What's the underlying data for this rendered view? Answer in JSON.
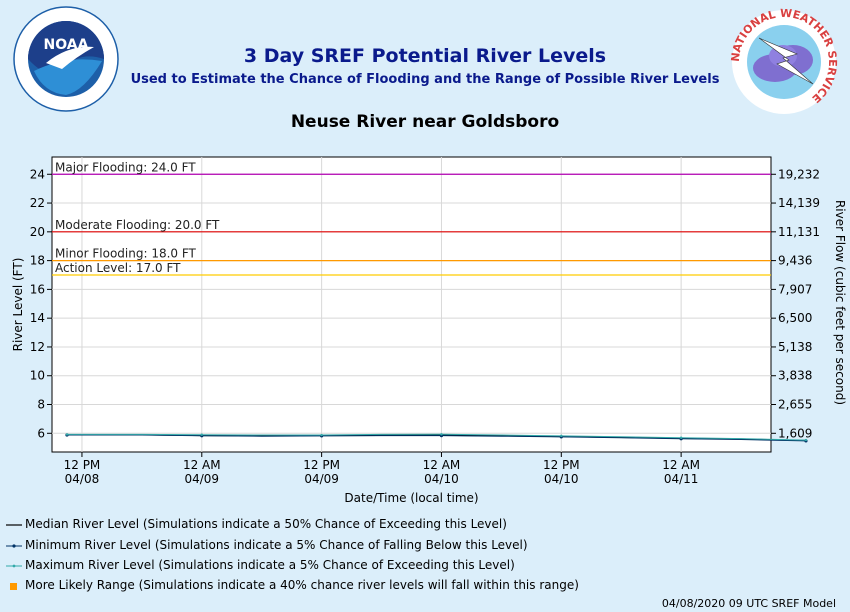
{
  "header": {
    "title": "3 Day SREF Potential River Levels",
    "subtitle": "Used to Estimate the Chance of Flooding and the Range of Possible River Levels",
    "gauge_name": "Neuse River near Goldsboro",
    "noaa_logo_text": "NOAA",
    "noaa_ring_text": "NATIONAL OCEANIC AND ATMOSPHERIC ADMINISTRATION · U.S. DEPARTMENT OF COMMERCE",
    "nws_ring_text": "NATIONAL WEATHER SERVICE"
  },
  "chart_data": {
    "type": "line",
    "xlabel": "Date/Time (local time)",
    "ylabel": "River Level (FT)",
    "y2label": "River Flow (cubic feet per second)",
    "ylim": [
      4.7,
      25.2
    ],
    "yticks": [
      6,
      8,
      10,
      12,
      14,
      16,
      18,
      20,
      22,
      24
    ],
    "y2ticks": [
      "1,609",
      "2,655",
      "3,838",
      "5,138",
      "6,500",
      "7,907",
      "9,436",
      "11,131",
      "14,139",
      "19,232"
    ],
    "xlim_hours": [
      -3,
      69
    ],
    "xticks": [
      {
        "hour": 0,
        "line1": "12 PM",
        "line2": "04/08"
      },
      {
        "hour": 12,
        "line1": "12 AM",
        "line2": "04/09"
      },
      {
        "hour": 24,
        "line1": "12 PM",
        "line2": "04/09"
      },
      {
        "hour": 36,
        "line1": "12 AM",
        "line2": "04/10"
      },
      {
        "hour": 48,
        "line1": "12 PM",
        "line2": "04/10"
      },
      {
        "hour": 60,
        "line1": "12 AM",
        "line2": "04/11"
      },
      {
        "hour": 72,
        "line1": "12 PM",
        "line2": "04/11"
      }
    ],
    "thresholds": [
      {
        "label": "Major Flooding: 24.0 FT",
        "value": 24.0,
        "color": "#b200b2"
      },
      {
        "label": "Moderate Flooding: 20.0 FT",
        "value": 20.0,
        "color": "#e00000"
      },
      {
        "label": "Minor Flooding: 18.0 FT",
        "value": 18.0,
        "color": "#ff9900"
      },
      {
        "label": "Action Level: 17.0 FT",
        "value": 17.0,
        "color": "#ffcc00"
      }
    ],
    "series": [
      {
        "name": "Median River Level (Simulations indicate a 50% Chance of Exceeding this Level)",
        "color": "#000000",
        "x": [
          -1.5,
          6,
          12,
          18,
          24,
          30,
          36,
          42,
          48,
          54,
          60,
          66,
          72.5
        ],
        "values": [
          5.9,
          5.9,
          5.85,
          5.83,
          5.85,
          5.86,
          5.87,
          5.83,
          5.78,
          5.72,
          5.65,
          5.6,
          5.5
        ]
      },
      {
        "name": "Minimum River Level (Simulations indicate a 5% Chance of Falling Below this Level)",
        "color": "#003366",
        "x": [
          -1.5,
          6,
          12,
          18,
          24,
          30,
          36,
          42,
          48,
          54,
          60,
          66,
          72.5
        ],
        "values": [
          5.88,
          5.88,
          5.83,
          5.8,
          5.82,
          5.84,
          5.84,
          5.8,
          5.75,
          5.69,
          5.62,
          5.57,
          5.47
        ]
      },
      {
        "name": "Maximum River Level (Simulations indicate a 5% Chance of Exceeding this Level)",
        "color": "#33aaaa",
        "x": [
          -1.5,
          6,
          12,
          18,
          24,
          30,
          36,
          42,
          48,
          54,
          60,
          66,
          72.5
        ],
        "values": [
          5.92,
          5.92,
          5.9,
          5.88,
          5.88,
          5.92,
          5.93,
          5.88,
          5.82,
          5.76,
          5.69,
          5.63,
          5.53
        ]
      }
    ],
    "range_legend": "More Likely Range (Simulations indicate a 40% chance river levels will fall within this range)",
    "range_color": "#ff9900"
  },
  "footer": {
    "timestamp": "04/08/2020 09 UTC SREF Model"
  }
}
